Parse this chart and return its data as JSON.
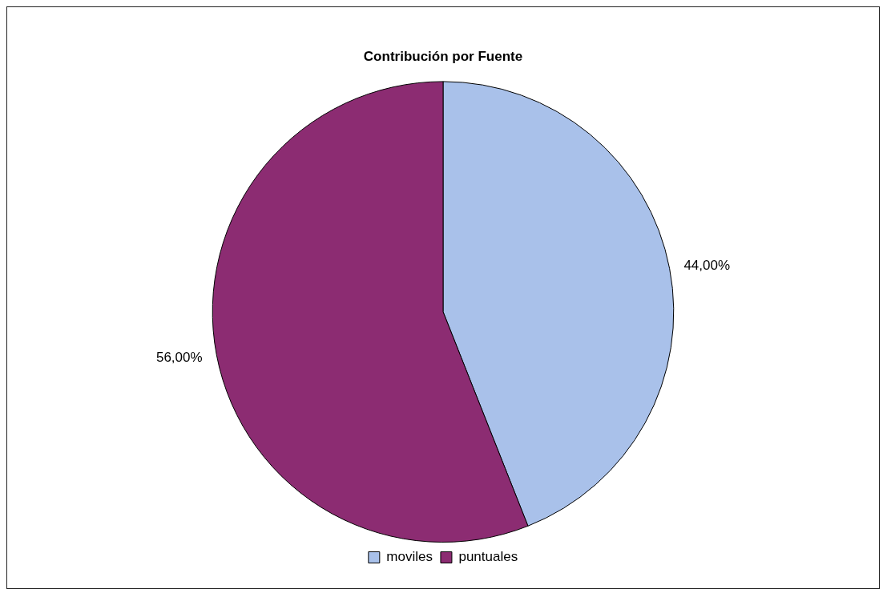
{
  "chart_data": {
    "type": "pie",
    "title": "Contribución por Fuente",
    "categories": [
      "moviles",
      "puntuales"
    ],
    "values": [
      44,
      56
    ],
    "colors": [
      "#a9c1ea",
      "#8c2c72"
    ],
    "value_labels": [
      "44,00%",
      "56,00%"
    ],
    "legend": "bottom"
  }
}
